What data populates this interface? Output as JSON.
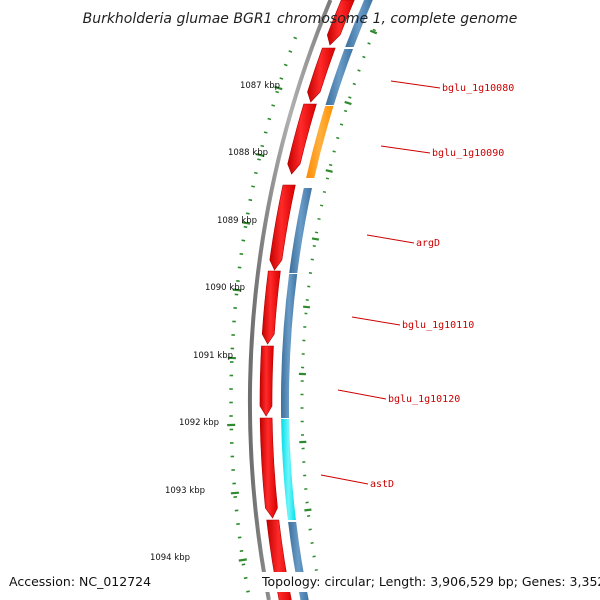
{
  "title": "Burkholderia glumae BGR1 chromosome 1, complete genome",
  "accession": "Accession: NC_012724",
  "topology": "Topology: circular; Length: 3,906,529 bp; Genes: 3,352",
  "kbp_labels": [
    "1087 kbp",
    "1088 kbp",
    "1089 kbp",
    "1090 kbp",
    "1091 kbp",
    "1092 kbp",
    "1093 kbp",
    "1094 kbp"
  ],
  "gene_labels": [
    "bglu_1g10080",
    "bglu_1g10090",
    "argD",
    "bglu_1g10110",
    "bglu_1g10120",
    "astD"
  ],
  "colors": {
    "forward_cds": "#ee0000",
    "reverse_cds": "#4a7fae",
    "highlight_orange": "#ff9900",
    "highlight_cyan": "#00e5ee",
    "backbone": "#888888",
    "tick": "#2e8b2e",
    "label": "#cc0000"
  }
}
